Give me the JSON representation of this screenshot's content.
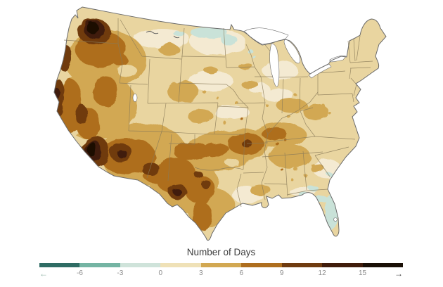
{
  "figure": {
    "type": "choropleth-map",
    "region": "Contiguous United States",
    "title": "Number of Days"
  },
  "legend": {
    "title": "Number of Days",
    "tick_labels": [
      "-6",
      "-3",
      "0",
      "3",
      "6",
      "9",
      "12",
      "15"
    ],
    "left_arrow": "←",
    "right_arrow": "→",
    "segments": [
      {
        "label": "below -6",
        "color": "#2f6c64"
      },
      {
        "label": "-6 to -3",
        "color": "#74b4a3"
      },
      {
        "label": "-3 to 0",
        "color": "#cfe3da"
      },
      {
        "label": "0 to 3",
        "color": "#efe1b7"
      },
      {
        "label": "3 to 6",
        "color": "#d2a852"
      },
      {
        "label": "6 to 9",
        "color": "#ae6e1e"
      },
      {
        "label": "9 to 12",
        "color": "#6f3b10"
      },
      {
        "label": "12 to 15",
        "color": "#401c0b"
      },
      {
        "label": "above 15",
        "color": "#1a0f06"
      }
    ]
  },
  "map": {
    "palette": {
      "base": "#e9d5a0",
      "pale": "#f4ead2",
      "tealL": "#c9e2d8",
      "s4": "#d2a852",
      "s5": "#ae6e1e",
      "s6": "#6f3b10",
      "s7": "#401c0b",
      "s8": "#1a0f06",
      "water": "#ffffff",
      "stateline": "#8a7a58",
      "outline": "#6b6b6b",
      "arrowL": "#8fb3a7",
      "arrowR": "#474747"
    },
    "regions": [
      {
        "area": "central Washington",
        "days": "above 15"
      },
      {
        "area": "Pacific Northwest coast (Oregon)",
        "days": "9 to 12"
      },
      {
        "area": "northern California coast",
        "days": "12 to 15"
      },
      {
        "area": "Southern California",
        "days": "above 15"
      },
      {
        "area": "Arizona and western deserts",
        "days": "6 to 12"
      },
      {
        "area": "Great Basin / Nevada / Idaho",
        "days": "3 to 9"
      },
      {
        "area": "New Mexico and Big Bend Texas",
        "days": "6 to 12"
      },
      {
        "area": "central and south Texas",
        "days": "3 to 9"
      },
      {
        "area": "Oklahoma",
        "days": "3 to 9"
      },
      {
        "area": "Ozarks (Missouri/Arkansas)",
        "days": "6 to 9"
      },
      {
        "area": "western Kentucky / Tennessee",
        "days": "3 to 9"
      },
      {
        "area": "northern Plains and Midwest",
        "days": "0 to 3"
      },
      {
        "area": "North Dakota / northern Minnesota",
        "days": "-3 to 0"
      },
      {
        "area": "Northeast",
        "days": "0 to 3"
      },
      {
        "area": "Southeast coastal plain",
        "days": "0 to 3"
      },
      {
        "area": "Florida peninsula",
        "days": "-3 to 0"
      }
    ]
  }
}
